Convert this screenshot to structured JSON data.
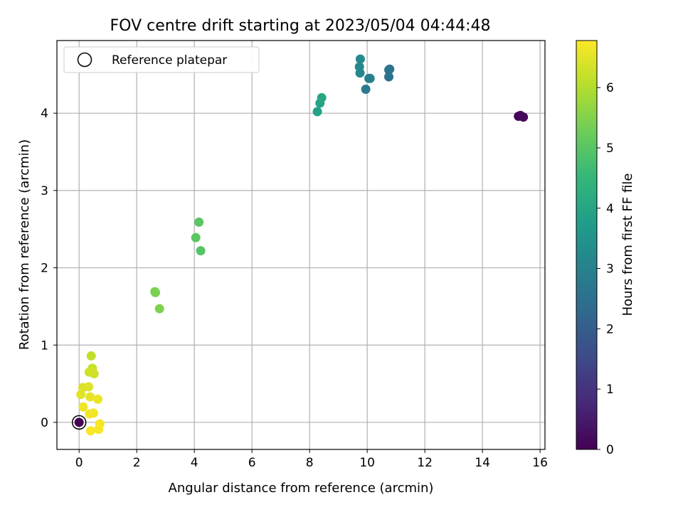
{
  "chart_data": {
    "type": "scatter",
    "title": "FOV centre drift starting at 2023/05/04 04:44:48",
    "xlabel": "Angular distance from reference (arcmin)",
    "ylabel": "Rotation from reference (arcmin)",
    "xlim": [
      -0.77,
      16.17
    ],
    "ylim": [
      -0.35,
      4.94
    ],
    "xticks": [
      0,
      2,
      4,
      6,
      8,
      10,
      12,
      14,
      16
    ],
    "yticks": [
      0,
      1,
      2,
      3,
      4
    ],
    "grid": true,
    "legend": {
      "location": "top-left",
      "entries": [
        "Reference platepar"
      ]
    },
    "colorbar": {
      "label": "Hours from first FF file",
      "colormap": "viridis",
      "range": [
        0,
        6.78
      ],
      "ticks": [
        0,
        1,
        2,
        3,
        4,
        5,
        6
      ]
    },
    "reference": {
      "x": 0.0,
      "y": 0.0,
      "t": 0.0
    },
    "points": [
      {
        "x": 0.0,
        "y": 0.0,
        "t": 0.0
      },
      {
        "x": 15.25,
        "y": 3.96,
        "t": 0.05
      },
      {
        "x": 15.32,
        "y": 3.97,
        "t": 0.1
      },
      {
        "x": 15.42,
        "y": 3.95,
        "t": 0.15
      },
      {
        "x": 10.78,
        "y": 4.57,
        "t": 2.5
      },
      {
        "x": 10.75,
        "y": 4.47,
        "t": 2.55
      },
      {
        "x": 10.75,
        "y": 4.56,
        "t": 2.6
      },
      {
        "x": 9.95,
        "y": 4.31,
        "t": 2.75
      },
      {
        "x": 10.06,
        "y": 4.45,
        "t": 2.85
      },
      {
        "x": 10.1,
        "y": 4.45,
        "t": 2.95
      },
      {
        "x": 9.75,
        "y": 4.52,
        "t": 3.15
      },
      {
        "x": 9.73,
        "y": 4.6,
        "t": 3.2
      },
      {
        "x": 9.76,
        "y": 4.7,
        "t": 3.25
      },
      {
        "x": 8.27,
        "y": 4.02,
        "t": 3.9
      },
      {
        "x": 8.36,
        "y": 4.13,
        "t": 3.95
      },
      {
        "x": 8.42,
        "y": 4.2,
        "t": 4.0
      },
      {
        "x": 4.22,
        "y": 2.22,
        "t": 4.95
      },
      {
        "x": 4.16,
        "y": 2.59,
        "t": 5.0
      },
      {
        "x": 4.05,
        "y": 2.39,
        "t": 5.05
      },
      {
        "x": 2.63,
        "y": 1.69,
        "t": 5.35
      },
      {
        "x": 2.65,
        "y": 1.68,
        "t": 5.4
      },
      {
        "x": 2.79,
        "y": 1.47,
        "t": 5.45
      },
      {
        "x": 0.42,
        "y": 0.86,
        "t": 6.15
      },
      {
        "x": 0.46,
        "y": 0.7,
        "t": 6.2
      },
      {
        "x": 0.52,
        "y": 0.63,
        "t": 6.25
      },
      {
        "x": 0.35,
        "y": 0.65,
        "t": 6.3
      },
      {
        "x": 0.46,
        "y": 0.66,
        "t": 6.35
      },
      {
        "x": 0.13,
        "y": 0.45,
        "t": 6.4
      },
      {
        "x": 0.33,
        "y": 0.46,
        "t": 6.45
      },
      {
        "x": 0.06,
        "y": 0.36,
        "t": 6.5
      },
      {
        "x": 0.38,
        "y": 0.33,
        "t": 6.55
      },
      {
        "x": 0.65,
        "y": 0.3,
        "t": 6.6
      },
      {
        "x": 0.14,
        "y": 0.2,
        "t": 6.62
      },
      {
        "x": 0.5,
        "y": 0.12,
        "t": 6.65
      },
      {
        "x": 0.36,
        "y": 0.11,
        "t": 6.68
      },
      {
        "x": 0.72,
        "y": -0.02,
        "t": 6.7
      },
      {
        "x": 0.68,
        "y": -0.09,
        "t": 6.72
      },
      {
        "x": 0.4,
        "y": -0.11,
        "t": 6.75
      }
    ]
  }
}
